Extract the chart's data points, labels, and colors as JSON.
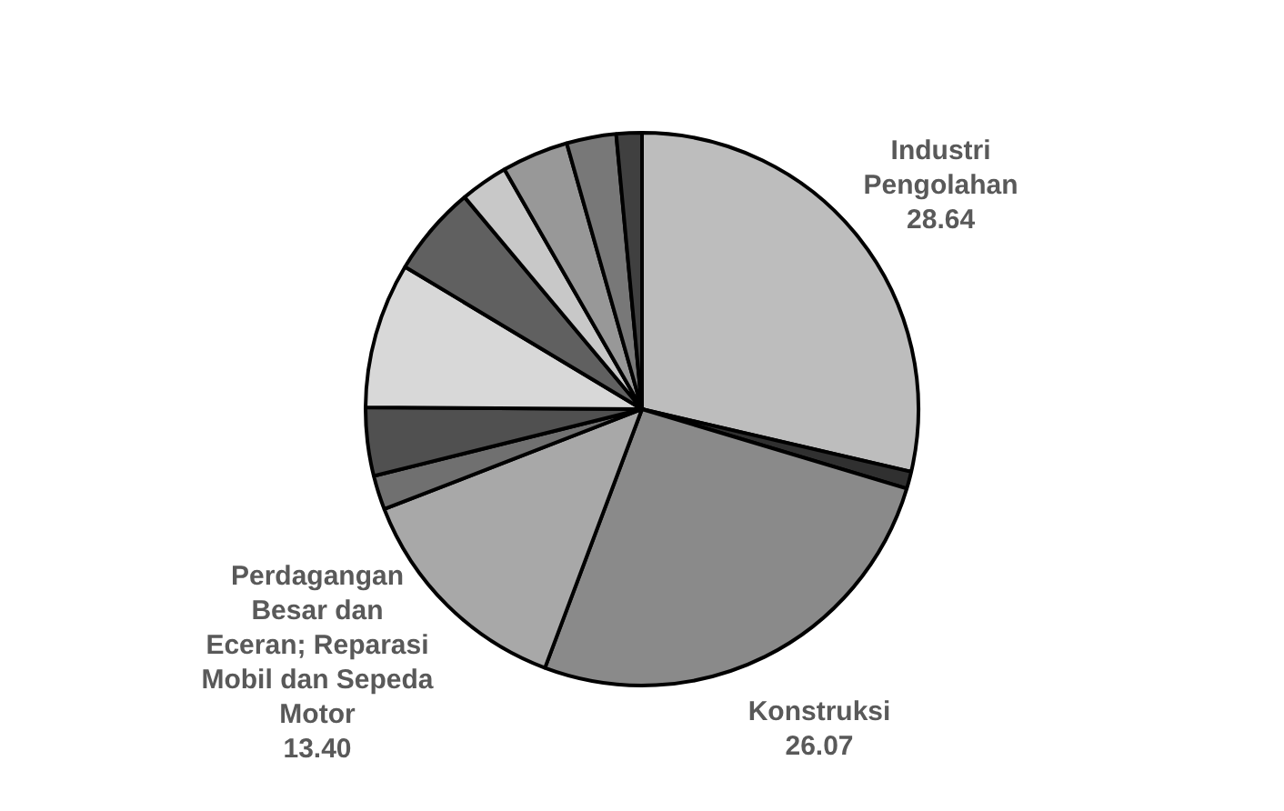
{
  "chart_data": {
    "type": "pie",
    "categories": [
      "Industri Pengolahan",
      null,
      "Konstruksi",
      "Perdagangan Besar dan Eceran; Reparasi Mobil dan Sepeda Motor",
      null,
      null,
      null,
      null,
      null,
      null,
      null,
      null
    ],
    "values": [
      28.64,
      1,
      26.07,
      13.4,
      2,
      4,
      8.5,
      5.3,
      2.8,
      3.9,
      2.9,
      1.49
    ],
    "value_labels": [
      "28.64",
      null,
      "26.07",
      "13.40",
      null,
      null,
      null,
      null,
      null,
      null,
      null,
      null
    ],
    "colors": [
      "#bdbdbd",
      "#303030",
      "#8a8a8a",
      "#a8a8a8",
      "#707070",
      "#505050",
      "#d8d8d8",
      "#606060",
      "#c8c8c8",
      "#989898",
      "#787878",
      "#404040"
    ]
  }
}
